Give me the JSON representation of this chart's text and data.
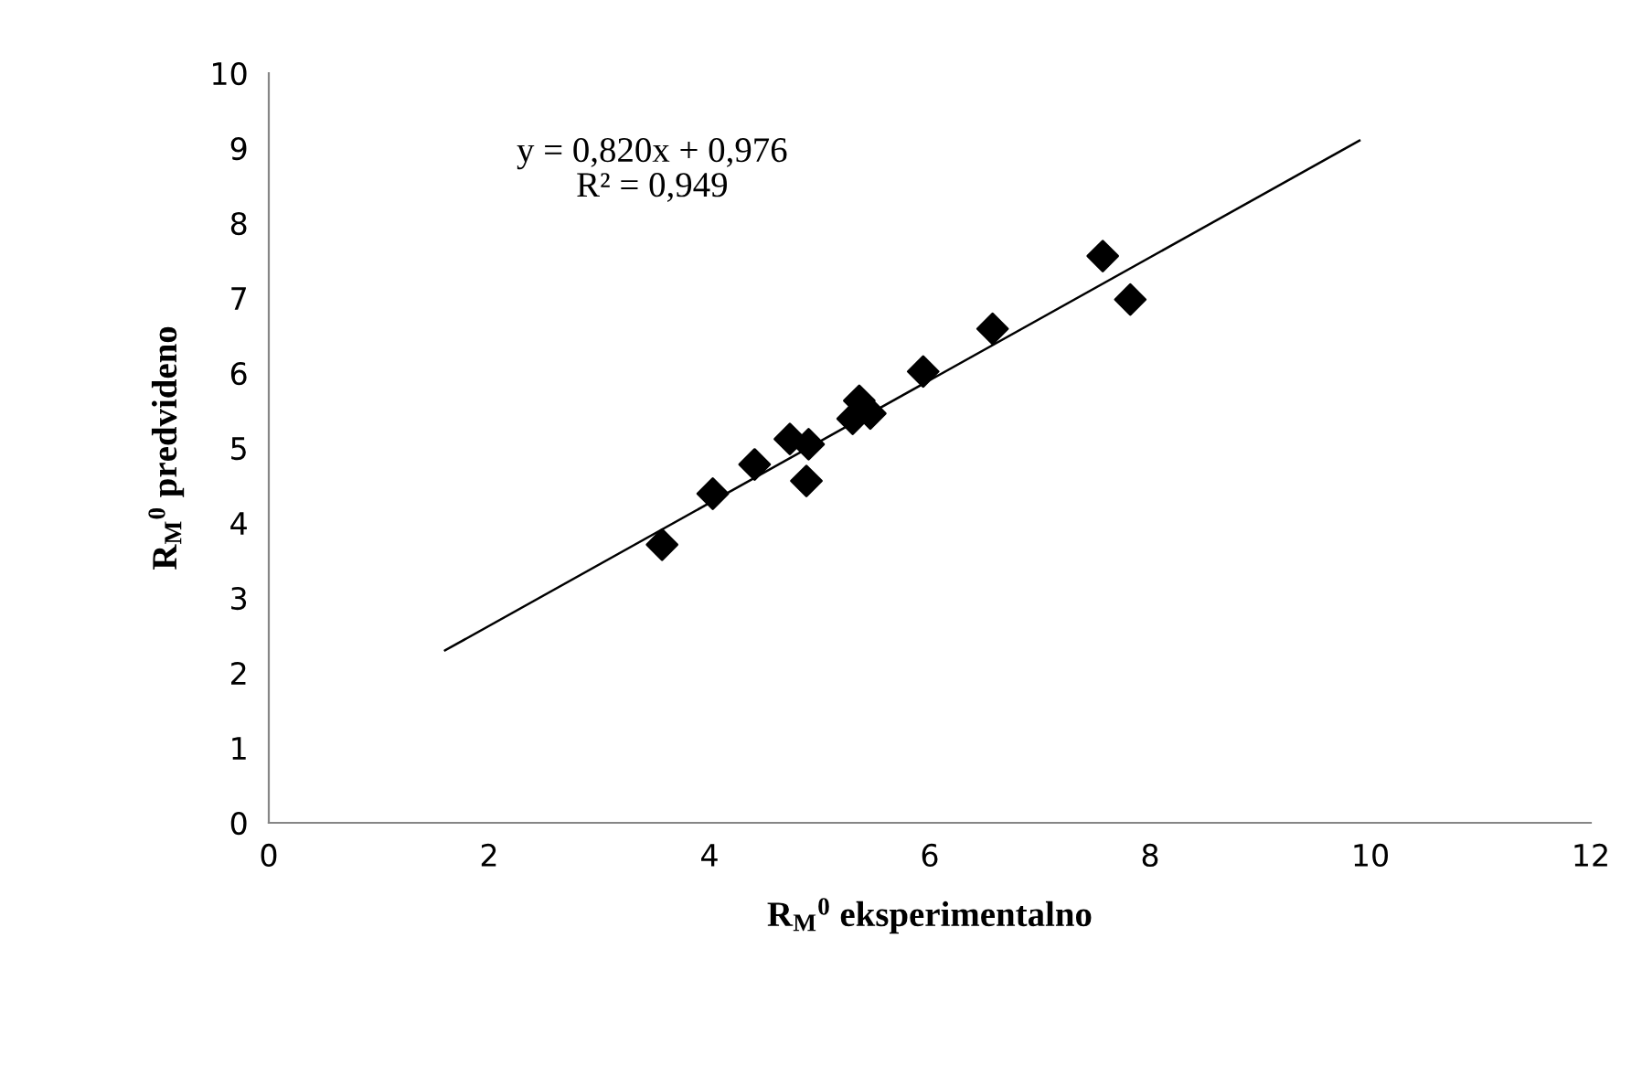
{
  "chart_data": {
    "type": "scatter",
    "xlabel": "R$_{M}$$^{0}$ eksperimentalno",
    "ylabel": "R$_{M}$$^{0}$ predvideno",
    "annotations": [
      "y = 0,820x + 0,976\nR² = 0,949"
    ],
    "xlim": [
      0,
      12
    ],
    "xticks": [
      0,
      2,
      4,
      6,
      8,
      10,
      12
    ],
    "ylim": [
      0,
      10
    ],
    "yticks": [
      0,
      1,
      2,
      3,
      4,
      5,
      6,
      7,
      8,
      9,
      10
    ],
    "grid": false,
    "legend": false,
    "series": [
      {
        "color": "#000000",
        "marker": "diamond",
        "x": [
          3.57,
          4.03,
          4.41,
          4.73,
          4.9,
          4.88,
          5.3,
          5.36,
          5.46,
          5.94,
          6.57,
          7.57,
          7.82
        ],
        "values": [
          3.71,
          4.39,
          4.78,
          5.12,
          5.05,
          4.56,
          5.39,
          5.63,
          5.46,
          6.02,
          6.59,
          7.56,
          6.98
        ]
      },
      {
        "type": "line",
        "color": "#000000",
        "marker": "none",
        "line_style": "solid",
        "x": [
          1.6,
          9.9
        ],
        "values": [
          2.3,
          9.1
        ]
      }
    ]
  }
}
